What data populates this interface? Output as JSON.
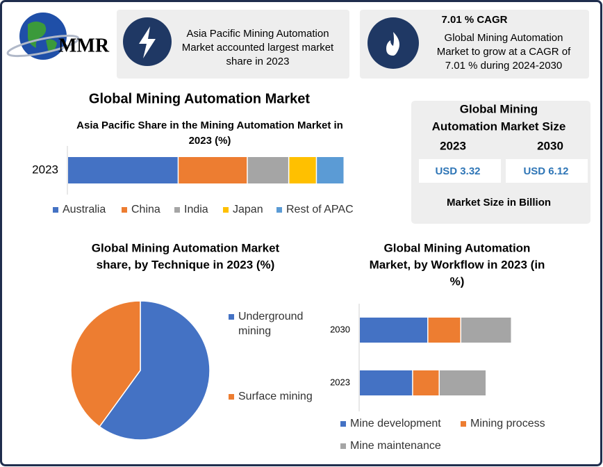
{
  "logo": "MMR",
  "highlights": [
    {
      "lines": [
        "Asia Pacific Mining Automation",
        "Market accounted largest market",
        "share in 2023"
      ]
    },
    {
      "title": "7.01 % CAGR",
      "lines": [
        "Global Mining Automation",
        "Market to grow at a CAGR of",
        "7.01 % during 2024-2030"
      ]
    }
  ],
  "title": "Global Mining Automation  Market",
  "market_size": {
    "title": [
      "Global Mining",
      "Automation Market Size"
    ],
    "years": [
      "2023",
      "2030"
    ],
    "values": [
      "USD 3.32",
      "USD 6.12"
    ],
    "note": "Market Size in Billion"
  },
  "chart_data": [
    {
      "type": "stacked-hbar",
      "title": [
        "Asia Pacific Share in the Mining Automation Market in",
        "2023 (%)"
      ],
      "categories": [
        "2023"
      ],
      "series": [
        {
          "name": "Australia",
          "color": "#4472c4",
          "values": [
            40
          ]
        },
        {
          "name": "China",
          "color": "#ed7d31",
          "values": [
            25
          ]
        },
        {
          "name": "India",
          "color": "#a5a5a5",
          "values": [
            15
          ]
        },
        {
          "name": "Japan",
          "color": "#ffc000",
          "values": [
            10
          ]
        },
        {
          "name": "Rest of APAC",
          "color": "#5b9bd5",
          "values": [
            10
          ]
        }
      ]
    },
    {
      "type": "pie",
      "title": [
        "Global Mining Automation Market",
        "share, by Technique in 2023  (%)"
      ],
      "categories": [
        "Underground mining",
        "Surface mining"
      ],
      "values": [
        60,
        40
      ],
      "colors": [
        "#4472c4",
        "#ed7d31"
      ]
    },
    {
      "type": "stacked-hbar",
      "title": [
        "Global Mining Automation",
        "Market, by Workflow in 2023 (in",
        "%)"
      ],
      "categories": [
        "2030",
        "2023"
      ],
      "series": [
        {
          "name": "Mine development",
          "color": "#4472c4",
          "values": [
            2.7,
            2.1
          ]
        },
        {
          "name": "Mining process",
          "color": "#ed7d31",
          "values": [
            1.3,
            1.05
          ]
        },
        {
          "name": "Mine maintenance",
          "color": "#a5a5a5",
          "values": [
            2.0,
            1.85
          ]
        }
      ]
    }
  ]
}
